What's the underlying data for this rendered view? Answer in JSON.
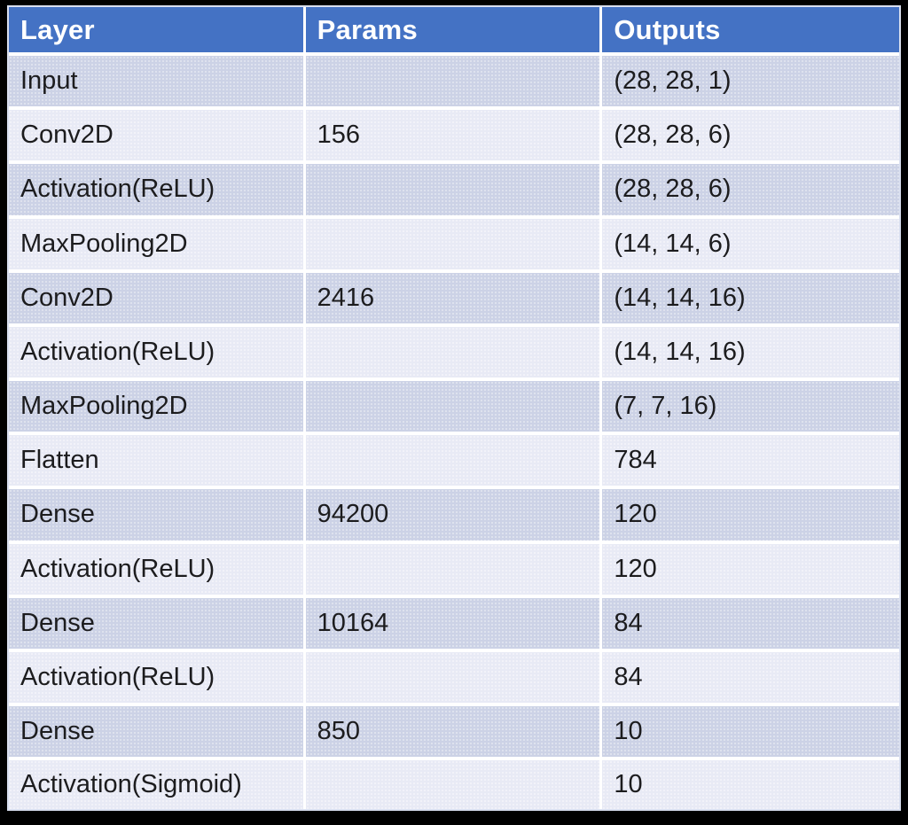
{
  "table": {
    "columns": [
      "Layer",
      "Params",
      "Outputs"
    ],
    "rows": [
      {
        "layer": "Input",
        "params": "",
        "outputs": "(28, 28, 1)"
      },
      {
        "layer": "Conv2D",
        "params": "156",
        "outputs": "(28, 28, 6)"
      },
      {
        "layer": "Activation(ReLU)",
        "params": "",
        "outputs": "(28, 28, 6)"
      },
      {
        "layer": "MaxPooling2D",
        "params": "",
        "outputs": "(14, 14, 6)"
      },
      {
        "layer": "Conv2D",
        "params": "2416",
        "outputs": "(14, 14, 16)"
      },
      {
        "layer": "Activation(ReLU)",
        "params": "",
        "outputs": "(14, 14, 16)"
      },
      {
        "layer": "MaxPooling2D",
        "params": "",
        "outputs": "(7, 7, 16)"
      },
      {
        "layer": "Flatten",
        "params": "",
        "outputs": "784"
      },
      {
        "layer": "Dense",
        "params": "94200",
        "outputs": "120"
      },
      {
        "layer": "Activation(ReLU)",
        "params": "",
        "outputs": "120"
      },
      {
        "layer": "Dense",
        "params": "10164",
        "outputs": "84"
      },
      {
        "layer": "Activation(ReLU)",
        "params": "",
        "outputs": "84"
      },
      {
        "layer": "Dense",
        "params": "850",
        "outputs": "10"
      },
      {
        "layer": "Activation(Sigmoid)",
        "params": "",
        "outputs": "10"
      }
    ]
  },
  "colors": {
    "background": "#000000",
    "header_bg": "#4472C4",
    "header_text": "#FFFFFF",
    "band_dark": "#CCD2E6",
    "band_light": "#E8EAF5",
    "grid_line": "#FFFFFF",
    "body_text": "#1C1C1E",
    "outer_border": "#D9DFEF"
  }
}
